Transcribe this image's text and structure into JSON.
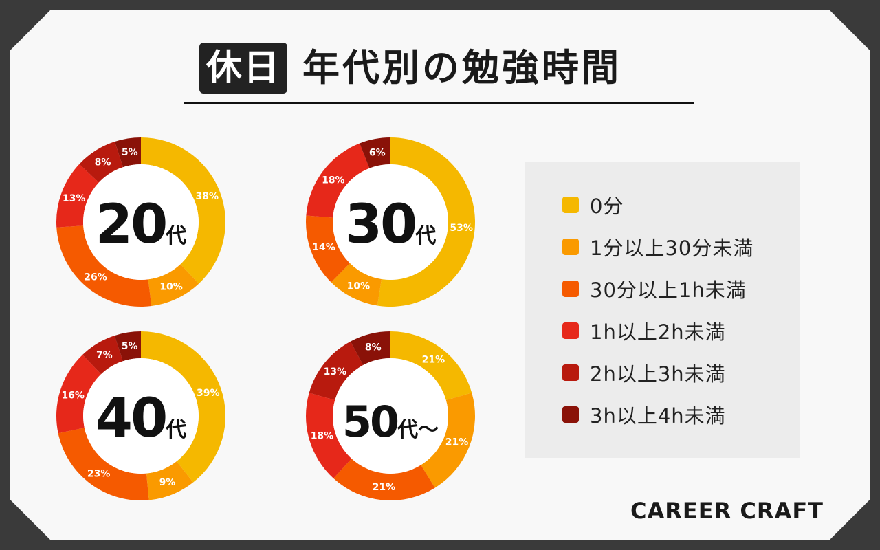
{
  "header": {
    "tag": "休日",
    "title": "年代別の勉強時間"
  },
  "legend": {
    "items": [
      {
        "label": "0分",
        "color": "#F5B800"
      },
      {
        "label": "1分以上30分未満",
        "color": "#FA9A00"
      },
      {
        "label": "30分以上1h未満",
        "color": "#F55A00"
      },
      {
        "label": "1h以上2h未満",
        "color": "#E6281A"
      },
      {
        "label": "2h以上3h未満",
        "color": "#B81A0E"
      },
      {
        "label": "3h以上4h未満",
        "color": "#8A1208"
      }
    ]
  },
  "chart_data": [
    {
      "type": "pie",
      "center_label": "20",
      "center_suffix": "代",
      "categories": [
        "0分",
        "1分以上30分未満",
        "30分以上1h未満",
        "1h以上2h未満",
        "2h以上3h未満",
        "3h以上4h未満"
      ],
      "values": [
        38,
        10,
        26,
        13,
        8,
        5
      ],
      "labels": [
        "38%",
        "10%",
        "26%",
        "13%",
        "8%",
        "5%"
      ]
    },
    {
      "type": "pie",
      "center_label": "30",
      "center_suffix": "代",
      "categories": [
        "0分",
        "1分以上30分未満",
        "30分以上1h未満",
        "1h以上2h未満",
        "2h以上3h未満",
        "3h以上4h未満"
      ],
      "values": [
        53,
        10,
        14,
        18,
        0,
        6
      ],
      "labels": [
        "53%",
        "10%",
        "14%",
        "18%",
        "",
        "6%"
      ]
    },
    {
      "type": "pie",
      "center_label": "40",
      "center_suffix": "代",
      "categories": [
        "0分",
        "1分以上30分未満",
        "30分以上1h未満",
        "1h以上2h未満",
        "2h以上3h未満",
        "3h以上4h未満"
      ],
      "values": [
        39,
        9,
        23,
        16,
        7,
        5
      ],
      "labels": [
        "39%",
        "9%",
        "23%",
        "16%",
        "7%",
        "5%"
      ]
    },
    {
      "type": "pie",
      "center_label": "50",
      "center_suffix": "代〜",
      "categories": [
        "0分",
        "1分以上30分未満",
        "30分以上1h未満",
        "1h以上2h未満",
        "2h以上3h未満",
        "3h以上4h未満"
      ],
      "values": [
        21,
        21,
        21,
        18,
        13,
        8
      ],
      "labels": [
        "21%",
        "21%",
        "21%",
        "18%",
        "13%",
        "8%"
      ]
    }
  ],
  "brand": "CAREER CRAFT"
}
